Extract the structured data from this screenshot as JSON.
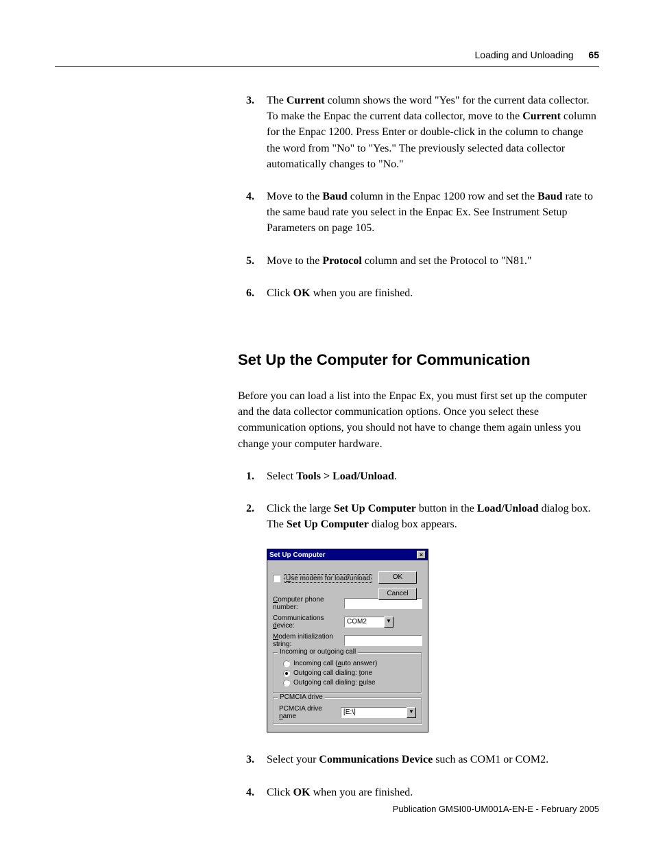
{
  "header": {
    "section": "Loading and Unloading",
    "page": "65"
  },
  "steps_a": [
    {
      "n": "3.",
      "html": "The <b>Current</b> column shows the word \"Yes\" for the current data collector. To make the Enpac the current data collector, move to the <b>Current</b> column for the Enpac 1200. Press Enter or double-click in the column to change the word from \"No\" to \"Yes.\" The previously selected data collector automatically changes to \"No.\""
    },
    {
      "n": "4.",
      "html": "Move to the <b>Baud</b> column in the Enpac 1200 row and set the <b>Baud</b> rate to the same baud rate you select in the Enpac Ex. See Instrument Setup Parameters on page 105."
    },
    {
      "n": "5.",
      "html": "Move to the <b>Protocol</b> column and set the Protocol to \"N81.\""
    },
    {
      "n": "6.",
      "html": "Click <b>OK</b> when you are finished."
    }
  ],
  "heading": "Set Up the Computer for Communication",
  "intro": "Before you can load a list into the Enpac Ex, you must first set up the computer and the data collector communication options. Once you select these communication options, you should not have to change them again unless you change your computer hardware.",
  "steps_b": [
    {
      "n": "1.",
      "html": "Select <b>Tools > Load/Unload</b>."
    },
    {
      "n": "2.",
      "html": "Click the large <b>Set Up Computer</b> button in the <b>Load/Unload</b> dialog box. The <b>Set Up Computer</b> dialog box appears."
    }
  ],
  "dialog": {
    "title": "Set Up Computer",
    "ok": "OK",
    "cancel": "Cancel",
    "use_modem_html": "<span class='underline'>U</span>se modem for load/unload",
    "phone_html": "<span class='underline'>C</span>omputer phone number:",
    "device_html": "Communications <span class='underline'>d</span>evice:",
    "device_value": "COM2",
    "modem_init_html": "<span class='underline'>M</span>odem initialization string:",
    "group1_legend": "Incoming or outgoing call",
    "radio1_html": "Incoming call (<span class='underline'>a</span>uto answer)",
    "radio2_html": "Outgoing call dialing: <span class='underline'>t</span>one",
    "radio3_html": "Outgoing call dialing: <span class='underline'>p</span>ulse",
    "radio_selected": 1,
    "group2_legend": "PCMCIA drive",
    "pcmcia_html": "PCMCIA drive <span class='underline'>n</span>ame",
    "pcmcia_value": "[E:\\]",
    "colors": {
      "titlebar": "#000080",
      "face": "#c0c0c0"
    }
  },
  "steps_c": [
    {
      "n": "3.",
      "html": "Select your <b>Communications Device</b> such as COM1 or COM2."
    },
    {
      "n": "4.",
      "html": "Click <b>OK</b> when you are finished."
    }
  ],
  "footer": "Publication GMSI00-UM001A-EN-E - February 2005"
}
